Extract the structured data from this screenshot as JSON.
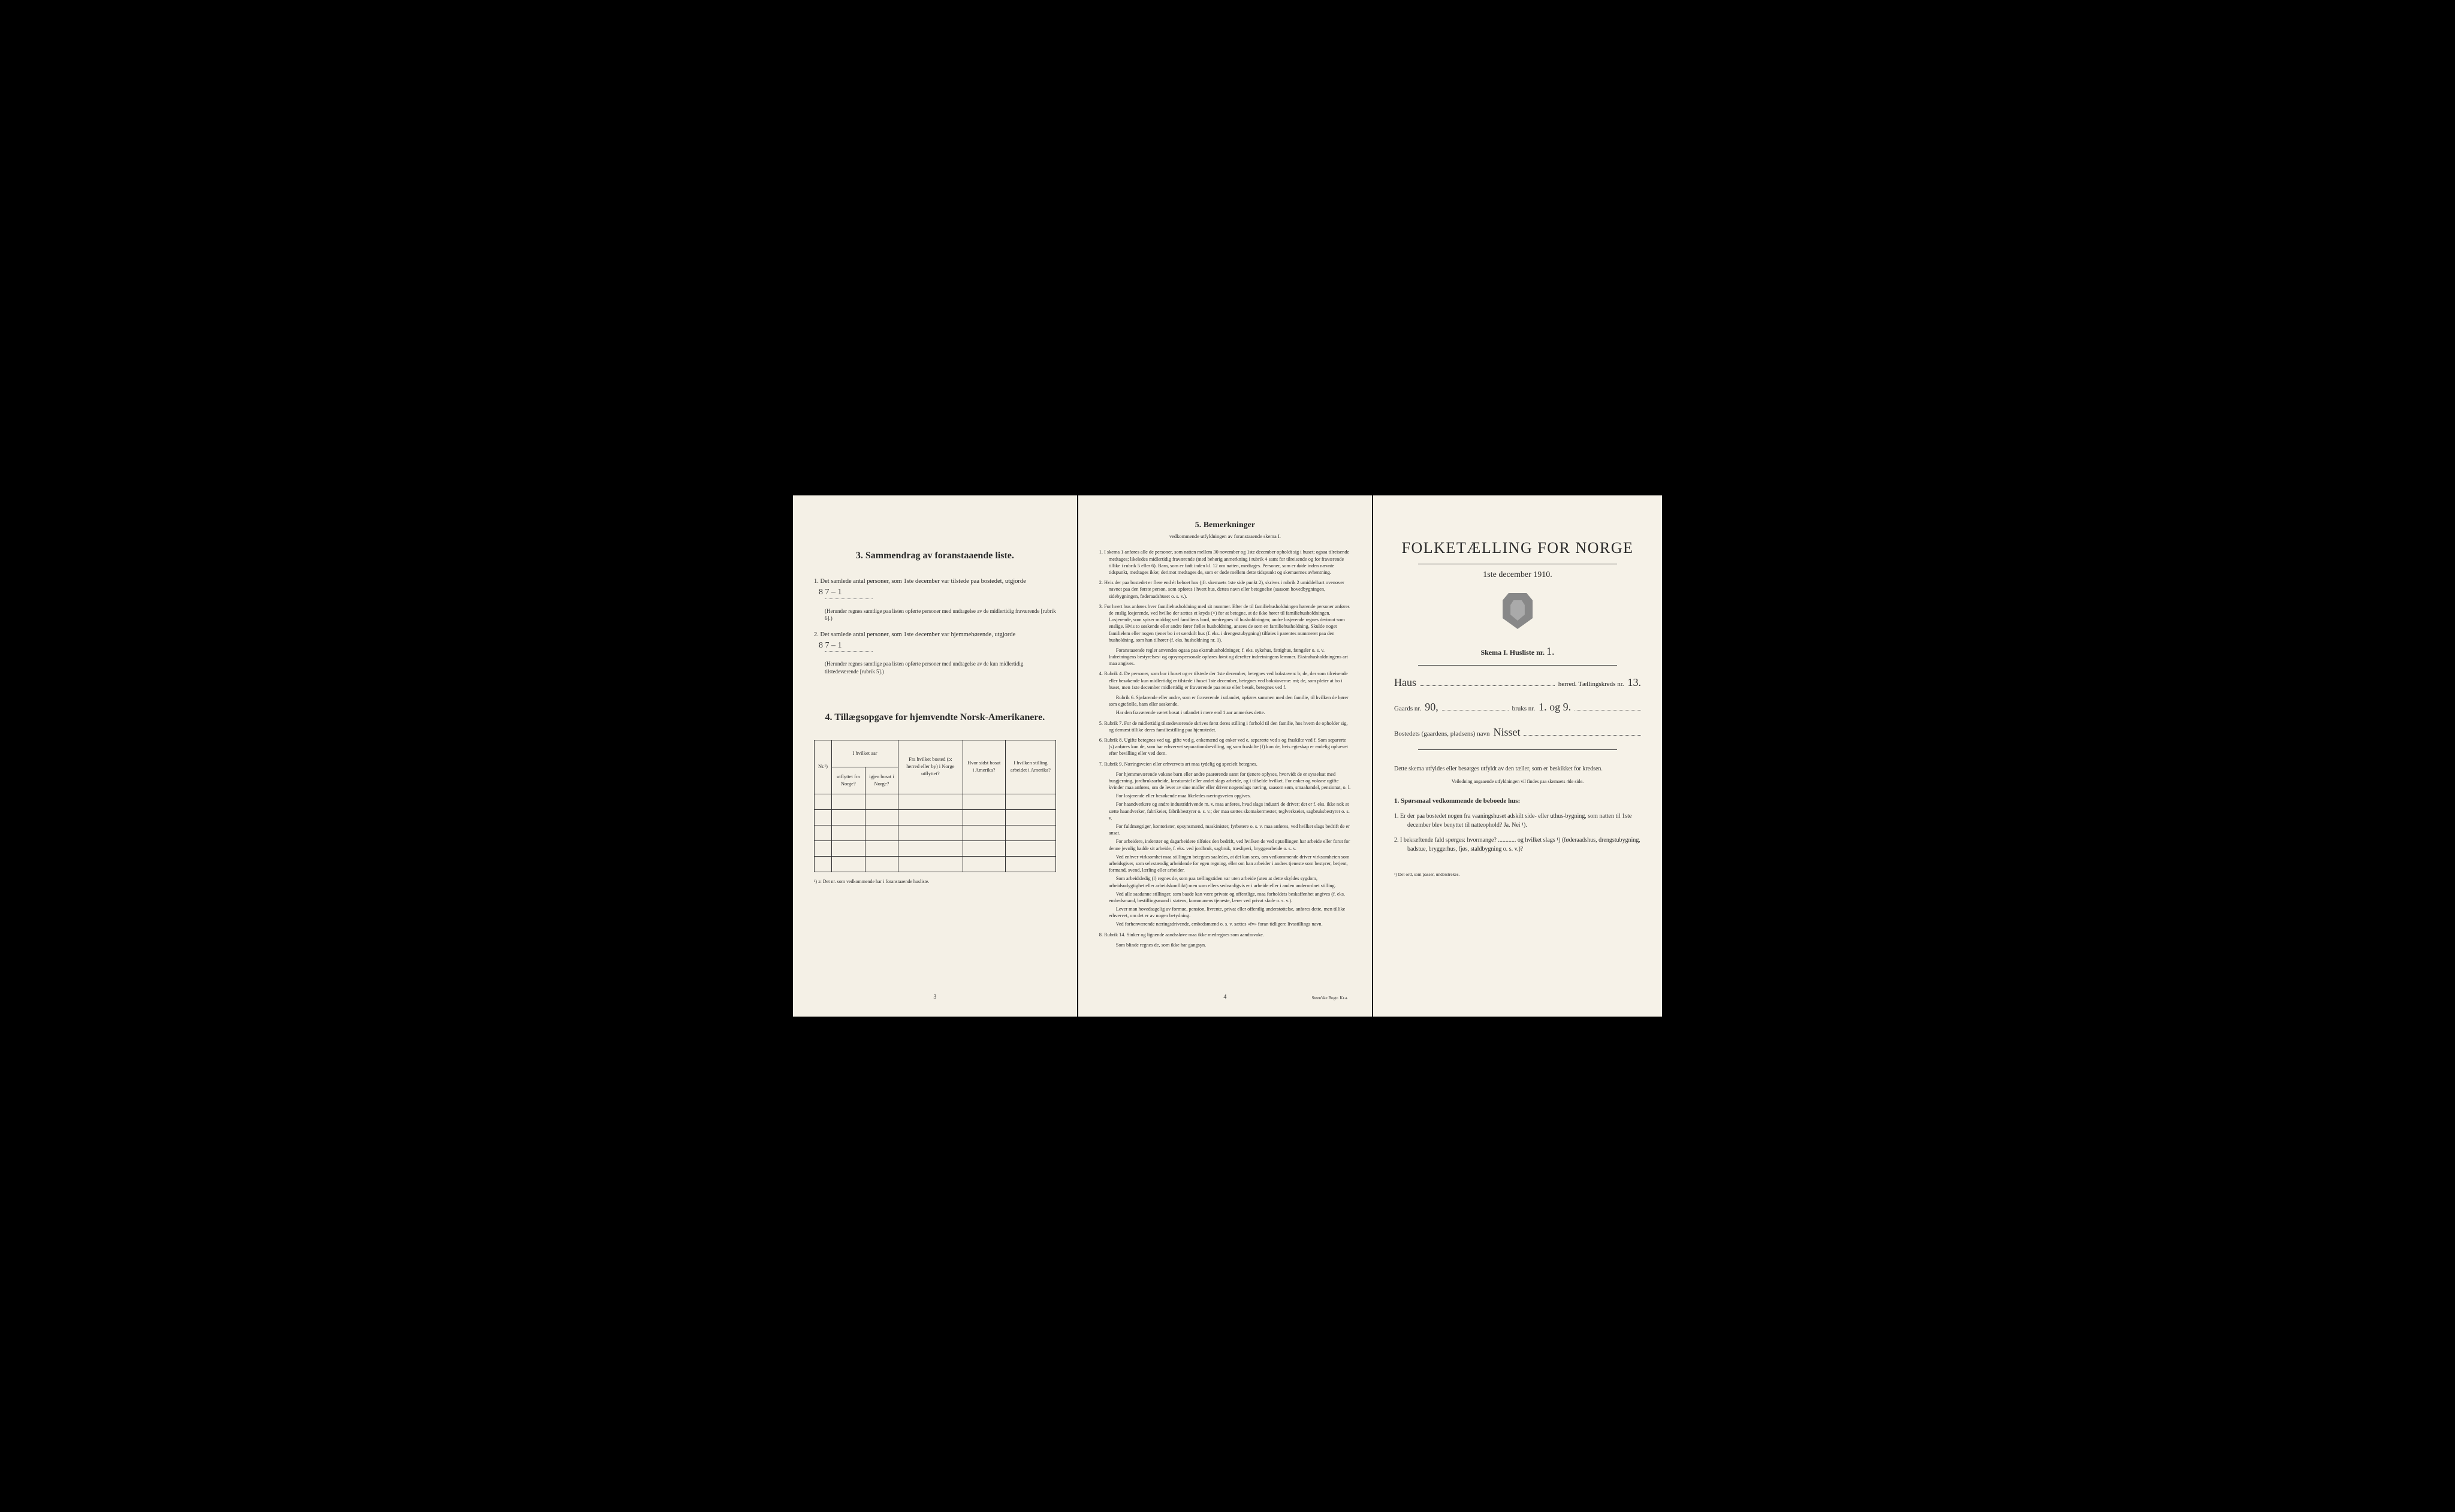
{
  "page1": {
    "section3_title": "3.   Sammendrag av foranstaaende liste.",
    "item1": "1. Det samlede antal personer, som 1ste december var tilstede paa bostedet, utgjorde",
    "item1_value": "8   7 – 1",
    "item1_note": "(Herunder regnes samtlige paa listen opførte personer med undtagelse av de midlertidig fraværende [rubrik 6].)",
    "item2": "2. Det samlede antal personer, som 1ste december var hjemmehørende, utgjorde",
    "item2_value": "8   7 – 1",
    "item2_note": "(Herunder regnes samtlige paa listen opførte personer med undtagelse av de kun midlertidig tilstedeværende [rubrik 5].)",
    "section4_title": "4.  Tillægsopgave for hjemvendte Norsk-Amerikanere.",
    "table": {
      "col1": "Nr.¹)",
      "col2a": "I hvilket aar",
      "col2b": "utflyttet fra Norge?",
      "col2c": "igjen bosat i Norge?",
      "col3": "Fra hvilket bosted (ɔ: herred eller by) i Norge utflyttet?",
      "col4": "Hvor sidst bosat i Amerika?",
      "col5": "I hvilken stilling arbeidet i Amerika?"
    },
    "footnote": "¹) ɔ: Det nr. som vedkommende har i foranstaaende husliste.",
    "page_number": "3"
  },
  "page2": {
    "title": "5.   Bemerkninger",
    "subtitle": "vedkommende utfyldningen av foranstaaende skema I.",
    "remarks": [
      "1. I skema 1 anføres alle de personer, som natten mellem 30 november og 1ste december opholdt sig i huset; ogsaa tilreisende medtages; likeledes midlertidig fraværende (med behørig anmerkning i rubrik 4 samt for tilreisende og for fraværende tillike i rubrik 5 eller 6). Barn, som er født inden kl. 12 om natten, medtages. Personer, som er døde inden nævnte tidspunkt, medtages ikke; derimot medtages de, som er døde mellem dette tidspunkt og skemaernes avhentning.",
      "2. Hvis der paa bostedet er flere end ét beboet hus (jfr. skemaets 1ste side punkt 2), skrives i rubrik 2 umiddelbart ovenover navnet paa den første person, som opføres i hvert hus, dettes navn eller betegnelse (saasom hovedbygningen, sidebygningen, føderaadshuset o. s. v.).",
      "3. For hvert hus anføres hver familiehusholdning med sit nummer. Efter de til familiehusholdningen hørende personer anføres de enslig losjerende, ved hvilke der sættes et kryds (×) for at betegne, at de ikke hører til familiehusholdningen. Losjerende, som spiser middag ved familiens bord, medregnes til husholdningen; andre losjerende regnes derimot som enslige. Hvis to søskende eller andre fører fælles husholdning, ansees de som en familiehusholdning. Skulde noget familielem eller nogen tjener bo i et særskilt hus (f. eks. i drengestubygning) tilføies i parentes nummeret paa den husholdning, som han tilhører (f. eks. husholdning nr. 1).",
      "4. Rubrik 4. De personer, som bor i huset og er tilstede der 1ste december, betegnes ved bokstaven: b; de, der som tilreisende eller besøkende kun midlertidig er tilstede i huset 1ste december, betegnes ved bokstaverne: mt; de, som pleier at bo i huset, men 1ste december midlertidig er fraværende paa reise eller besøk, betegnes ved f.",
      "5. Rubrik 7. For de midlertidig tilstedeværende skrives først deres stilling i forhold til den familie, hos hvem de opholder sig, og dernæst tillike deres familiestilling paa hjemstedet.",
      "6. Rubrik 8. Ugifte betegnes ved ug, gifte ved g, enkemænd og enker ved e, separerte ved s og fraskilte ved f. Som separerte (s) anføres kun de, som har erhvervet separationsbevilling, og som fraskilte (f) kun de, hvis egteskap er endelig ophævet efter bevilling eller ved dom.",
      "7. Rubrik 9. Næringsveien eller erhvervets art maa tydelig og specielt betegnes.",
      "8. Rubrik 14. Sinker og lignende aandssløve maa ikke medregnes som aandssvake."
    ],
    "sub_remarks": {
      "r3a": "Foranstaaende regler anvendes ogsaa paa ekstrahusholdninger, f. eks. sykehus, fattighus, fængsler o. s. v. Indretningens bestyrelses- og opsynspersonale opføres først og derefter indretningens lemmer. Ekstrahusholdningens art maa angives.",
      "r4a": "Rubrik 6. Sjøfarende eller andre, som er fraværende i utlandet, opføres sammen med den familie, til hvilken de hører som egtefælle, barn eller søskende.",
      "r4b": "Har den fraværende været bosat i utlandet i mere end 1 aar anmerkes dette.",
      "r7a": "For hjemmeværende voksne barn eller andre paarørende samt for tjenere oplyses, hvorvidt de er sysselsat med husgjerning, jordbruksarbeide, kreaturstel eller andet slags arbeide, og i tilfælde hvilket. For enker og voksne ugifte kvinder maa anføres, om de lever av sine midler eller driver nogenslags næring, saasom søm, smaahandel, pensionat, o. l.",
      "r7b": "For losjerende eller besøkende maa likeledes næringsveien opgives.",
      "r7c": "For haandverkere og andre industridrivende m. v. maa anføres, hvad slags industri de driver; det er f. eks. ikke nok at sætte haandverker, fabrikeier, fabrikbestyrer o. s. v.; der maa sættes skomakermester, teglverkseier, sagbruksbestyrer o. s. v.",
      "r7d": "For fuldmægtiger, kontorister, opsynsmænd, maskinister, fyrbøtere o. s. v. maa anføres, ved hvilket slags bedrift de er ansat.",
      "r7e": "For arbeidere, inderster og dagarbeidere tilføies den bedrift, ved hvilken de ved optællingen har arbeide eller forut for denne jevnlig hadde sit arbeide, f. eks. ved jordbruk, sagbruk, træsliperi, bryggearbeide o. s. v.",
      "r7f": "Ved enhver virksomhet maa stillingen betegnes saaledes, at det kan sees, om vedkommende driver virksomheten som arbeidsgiver, som selvstændig arbeidende for egen regning, eller om han arbeider i andres tjeneste som bestyrer, betjent, formand, svend, lærling eller arbeider.",
      "r7g": "Som arbeidsledig (l) regnes de, som paa tællingstiden var uten arbeide (uten at dette skyldes sygdom, arbeidsudygtighet eller arbeidskonflikt) men som ellers sedvanligvis er i arbeide eller i anden underordnet stilling.",
      "r7h": "Ved alle saadanne stillinger, som baade kan være private og offentlige, maa forholdets beskaffenhet angives (f. eks. embedsmand, bestillingsmand i statens, kommunens tjeneste, lærer ved privat skole o. s. v.).",
      "r7i": "Lever man hovedsagelig av formue, pension, livrente, privat eller offentlig understøttelse, anføres dette, men tillike erhvervet, om det er av nogen betydning.",
      "r7j": "Ved forhenværende næringsdrivende, embedsmænd o. s. v. sættes «fv» foran tidligere livsstillings navn.",
      "r8a": "Som blinde regnes de, som ikke har gangsyn."
    },
    "page_number": "4",
    "printer": "Steen'ske Bogtr.  Kr.a."
  },
  "page3": {
    "main_title": "FOLKETÆLLING FOR NORGE",
    "date": "1ste december 1910.",
    "skema": "Skema I.   Husliste nr.",
    "skema_nr": "1.",
    "herred_label": "herred.  Tællingskreds nr.",
    "herred_value": "Haus",
    "kreds_nr": "13.",
    "gaards_label": "Gaards nr.",
    "gaards_nr": "90,",
    "bruks_label": "bruks nr.",
    "bruks_nr": "1. og 9.",
    "bosted_label": "Bostedets (gaardens, pladsens) navn",
    "bosted_value": "Nisset",
    "instruction": "Dette skema utfyldes eller besørges utfyldt av den tæller, som er beskikket for kredsen.",
    "small_instruction": "Veiledning angaaende utfyldningen vil findes paa skemaets 4de side.",
    "q_header": "1. Spørsmaal vedkommende de beboede hus:",
    "q1": "1. Er der paa bostedet nogen fra vaaningshuset adskilt side- eller uthus-bygning, som natten til 1ste december blev benyttet til natteophold?   Ja.   Nei ¹).",
    "q2": "2. I bekræftende fald spørges: hvormange? ............ og hvilket slags ¹) (føderaadshus, drengstubygning, badstue, bryggerhus, fjøs, staldbygning o. s. v.)?",
    "q_footnote": "¹) Det ord, som passer, understrekes."
  }
}
